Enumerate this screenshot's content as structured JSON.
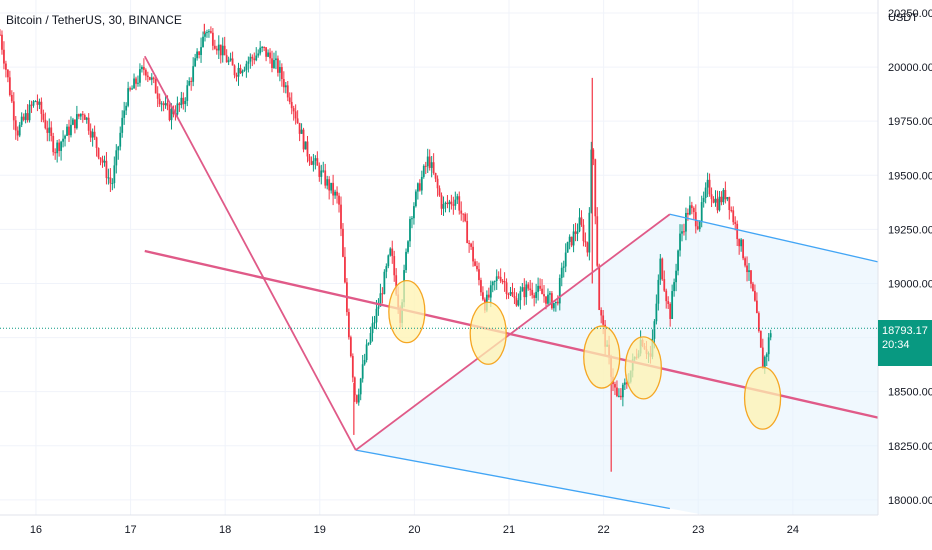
{
  "header": {
    "symbol_title": "Bitcoin / TetherUS, 30, BINANCE",
    "currency": "USDT"
  },
  "price_badge": {
    "price": "18793.17",
    "countdown": "20:34",
    "color": "#089981"
  },
  "colors": {
    "up": "#089981",
    "down": "#f23645",
    "trendline": "#e05a88",
    "channel": "#42a5f5",
    "channel_fill": "#e3f2fd",
    "marker_fill": "#fff3b0",
    "marker_stroke": "#f5a623",
    "grid": "#f0f3fa",
    "last_price_line": "#089981"
  },
  "chart_data": {
    "type": "candlestick",
    "title": "Bitcoin / TetherUS, 30, BINANCE",
    "ylabel": "USDT",
    "ylim": [
      17930,
      20310
    ],
    "xlim": [
      15.62,
      24.9
    ],
    "y_ticks": [
      18000,
      18250,
      18500,
      18750,
      19000,
      19250,
      19500,
      19750,
      20000,
      20250
    ],
    "y_tick_labels": [
      "18000.00",
      "18250.00",
      "18500.00",
      "18750.00",
      "19000.00",
      "19250.00",
      "19500.00",
      "19750.00",
      "20000.00",
      "20250.00"
    ],
    "x_ticks": [
      16,
      17,
      18,
      19,
      20,
      21,
      22,
      23,
      24
    ],
    "x_tick_labels": [
      "16",
      "17",
      "18",
      "19",
      "20",
      "21",
      "22",
      "23",
      "24"
    ],
    "grid": true,
    "last_price": 18793.17,
    "price_path": [
      [
        15.62,
        20150
      ],
      [
        15.8,
        19700
      ],
      [
        16.0,
        19850
      ],
      [
        16.2,
        19620
      ],
      [
        16.5,
        19800
      ],
      [
        16.8,
        19450
      ],
      [
        16.95,
        19850
      ],
      [
        17.15,
        20000
      ],
      [
        17.4,
        19780
      ],
      [
        17.55,
        19830
      ],
      [
        17.8,
        20180
      ],
      [
        18.1,
        19980
      ],
      [
        18.4,
        20080
      ],
      [
        18.55,
        20000
      ],
      [
        18.7,
        19850
      ],
      [
        18.85,
        19620
      ],
      [
        19.05,
        19480
      ],
      [
        19.2,
        19380
      ],
      [
        19.28,
        18900
      ],
      [
        19.38,
        18450
      ],
      [
        19.5,
        18700
      ],
      [
        19.62,
        18900
      ],
      [
        19.75,
        19150
      ],
      [
        19.85,
        18850
      ],
      [
        19.95,
        19300
      ],
      [
        20.05,
        19450
      ],
      [
        20.15,
        19580
      ],
      [
        20.3,
        19350
      ],
      [
        20.45,
        19400
      ],
      [
        20.6,
        19150
      ],
      [
        20.75,
        18900
      ],
      [
        20.9,
        19050
      ],
      [
        21.05,
        18920
      ],
      [
        21.2,
        18980
      ],
      [
        21.35,
        18950
      ],
      [
        21.5,
        18900
      ],
      [
        21.6,
        19150
      ],
      [
        21.75,
        19280
      ],
      [
        21.83,
        19150
      ],
      [
        21.88,
        19700
      ],
      [
        21.95,
        18900
      ],
      [
        22.05,
        18650
      ],
      [
        22.15,
        18450
      ],
      [
        22.25,
        18550
      ],
      [
        22.4,
        18750
      ],
      [
        22.5,
        18650
      ],
      [
        22.6,
        19100
      ],
      [
        22.7,
        18850
      ],
      [
        22.8,
        19200
      ],
      [
        22.9,
        19350
      ],
      [
        23.0,
        19280
      ],
      [
        23.1,
        19450
      ],
      [
        23.2,
        19370
      ],
      [
        23.3,
        19420
      ],
      [
        23.4,
        19250
      ],
      [
        23.5,
        19100
      ],
      [
        23.6,
        18900
      ],
      [
        23.68,
        18620
      ],
      [
        23.72,
        18680
      ],
      [
        23.77,
        18793
      ]
    ],
    "wick_spikes": [
      {
        "x": 21.88,
        "high": 19950,
        "low": 19000
      },
      {
        "x": 22.08,
        "low": 18130
      },
      {
        "x": 19.36,
        "low": 18300
      },
      {
        "x": 17.78,
        "high": 20200
      }
    ],
    "drawings": {
      "lines": [
        {
          "name": "descending-leg",
          "from": [
            17.15,
            20050
          ],
          "to": [
            19.38,
            18230
          ]
        },
        {
          "name": "ascending-leg",
          "from": [
            19.38,
            18230
          ],
          "to": [
            22.7,
            19320
          ]
        },
        {
          "name": "regression-trendline",
          "from": [
            17.15,
            19150
          ],
          "to": [
            24.9,
            18380
          ]
        }
      ],
      "channel": {
        "upper": {
          "from": [
            22.7,
            19320
          ],
          "to": [
            24.9,
            19100
          ]
        },
        "lower": {
          "from": [
            19.38,
            18230
          ],
          "to": [
            22.7,
            17960
          ]
        }
      },
      "markers": [
        {
          "x": 19.92,
          "y": 18870
        },
        {
          "x": 20.78,
          "y": 18770
        },
        {
          "x": 21.98,
          "y": 18660
        },
        {
          "x": 22.42,
          "y": 18610
        },
        {
          "x": 23.68,
          "y": 18470
        }
      ]
    }
  }
}
